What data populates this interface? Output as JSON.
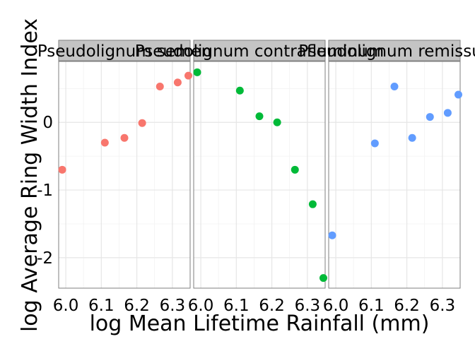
{
  "chart_data": {
    "type": "scatter",
    "xlabel": "log Mean Lifetime Rainfall (mm)",
    "ylabel": "log Average Ring Width Index",
    "xlim": [
      5.98,
      6.35
    ],
    "ylim": [
      -2.45,
      0.9
    ],
    "x_ticks": [
      "6.0",
      "6.1",
      "6.2",
      "6.3"
    ],
    "y_ticks": [
      "-2",
      "-1",
      "0"
    ],
    "grid": true,
    "legend": "none",
    "series": [
      {
        "name": "Pseudolignum semen",
        "color": "#F8766D",
        "x": [
          5.99,
          6.11,
          6.165,
          6.215,
          6.265,
          6.315,
          6.345
        ],
        "y": [
          -0.7,
          -0.3,
          -0.23,
          -0.01,
          0.53,
          0.59,
          0.69
        ]
      },
      {
        "name": "Pseudolignum contrafluminum",
        "color": "#00BA38",
        "x": [
          5.99,
          6.11,
          6.165,
          6.215,
          6.265,
          6.315,
          6.345
        ],
        "y": [
          0.74,
          0.47,
          0.09,
          0.0,
          -0.7,
          -1.21,
          -2.3
        ]
      },
      {
        "name": "Pseudolignum remissus",
        "color": "#619CFF",
        "x": [
          5.99,
          6.11,
          6.165,
          6.215,
          6.265,
          6.315,
          6.345
        ],
        "y": [
          -1.67,
          -0.31,
          0.53,
          -0.23,
          0.08,
          0.14,
          0.41
        ]
      }
    ]
  }
}
